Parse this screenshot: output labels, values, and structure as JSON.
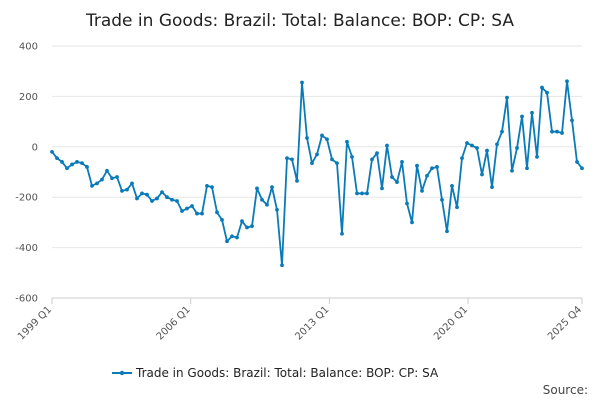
{
  "source_label": "Source:",
  "chart_data": {
    "type": "line",
    "title": "Trade in Goods: Brazil: Total: Balance: BOP: CP: SA",
    "xlabel": "",
    "ylabel": "",
    "ylim": [
      -600,
      400
    ],
    "yticks": [
      400,
      200,
      0,
      -200,
      -400,
      -600
    ],
    "x_start": "1999 Q1",
    "x_end": "2025 Q4",
    "xtick_labels": [
      "1999 Q1",
      "2006 Q1",
      "2013 Q1",
      "2020 Q1",
      "2025 Q4"
    ],
    "grid": true,
    "legend_position": "bottom",
    "color": "#0a7ab8",
    "series": [
      {
        "name": "Trade in Goods: Brazil: Total: Balance: BOP: CP: SA",
        "values": [
          -20,
          -45,
          -60,
          -85,
          -70,
          -60,
          -65,
          -80,
          -155,
          -145,
          -130,
          -95,
          -125,
          -120,
          -175,
          -170,
          -145,
          -205,
          -185,
          -190,
          -215,
          -205,
          -180,
          -200,
          -210,
          -215,
          -255,
          -245,
          -235,
          -265,
          -265,
          -155,
          -160,
          -260,
          -290,
          -375,
          -355,
          -360,
          -295,
          -320,
          -315,
          -165,
          -210,
          -230,
          -160,
          -250,
          -470,
          -45,
          -50,
          -135,
          255,
          35,
          -65,
          -30,
          45,
          30,
          -50,
          -65,
          -345,
          20,
          -40,
          -185,
          -185,
          -185,
          -50,
          -25,
          -165,
          5,
          -120,
          -140,
          -60,
          -225,
          -300,
          -75,
          -175,
          -115,
          -85,
          -80,
          -210,
          -335,
          -155,
          -240,
          -45,
          15,
          5,
          -5,
          -110,
          -15,
          -160,
          10,
          60,
          195,
          -95,
          -5,
          120,
          -85,
          135,
          -40,
          235,
          215,
          60,
          60,
          55,
          260,
          105,
          -60,
          -85
        ]
      }
    ]
  }
}
